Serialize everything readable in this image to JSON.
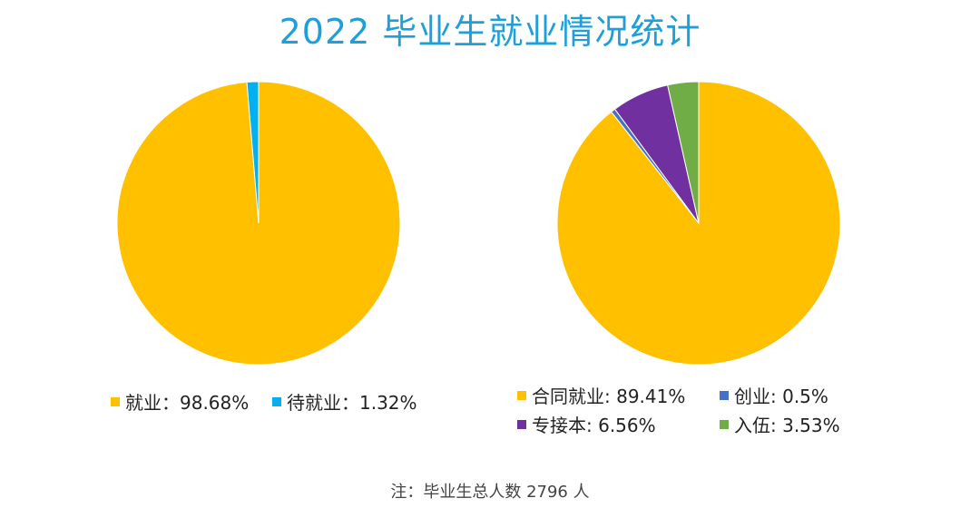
{
  "title": "2022 毕业生就业情况统计",
  "note": "注：毕业生总人数 2796 人",
  "colors": {
    "title": "#1E9FDA",
    "employed": "#FFC000",
    "waiting": "#00B0F0",
    "contract": "#FFC000",
    "startup": "#4472C4",
    "upgrade": "#7030A0",
    "military": "#70AD47"
  },
  "chart_data": [
    {
      "type": "pie",
      "slices": [
        {
          "label": "就业",
          "value": 98.68,
          "text": "就业：98.68%",
          "color": "#FFC000"
        },
        {
          "label": "待就业",
          "value": 1.32,
          "text": "待就业：1.32%",
          "color": "#00B0F0"
        }
      ],
      "legend_position": "bottom"
    },
    {
      "type": "pie",
      "slices": [
        {
          "label": "合同就业",
          "value": 89.41,
          "text": "合同就业: 89.41%",
          "color": "#FFC000"
        },
        {
          "label": "创业",
          "value": 0.5,
          "text": "创业: 0.5%",
          "color": "#4472C4"
        },
        {
          "label": "专接本",
          "value": 6.56,
          "text": "专接本: 6.56%",
          "color": "#7030A0"
        },
        {
          "label": "入伍",
          "value": 3.53,
          "text": "入伍: 3.53%",
          "color": "#70AD47"
        }
      ],
      "legend_position": "bottom"
    }
  ]
}
